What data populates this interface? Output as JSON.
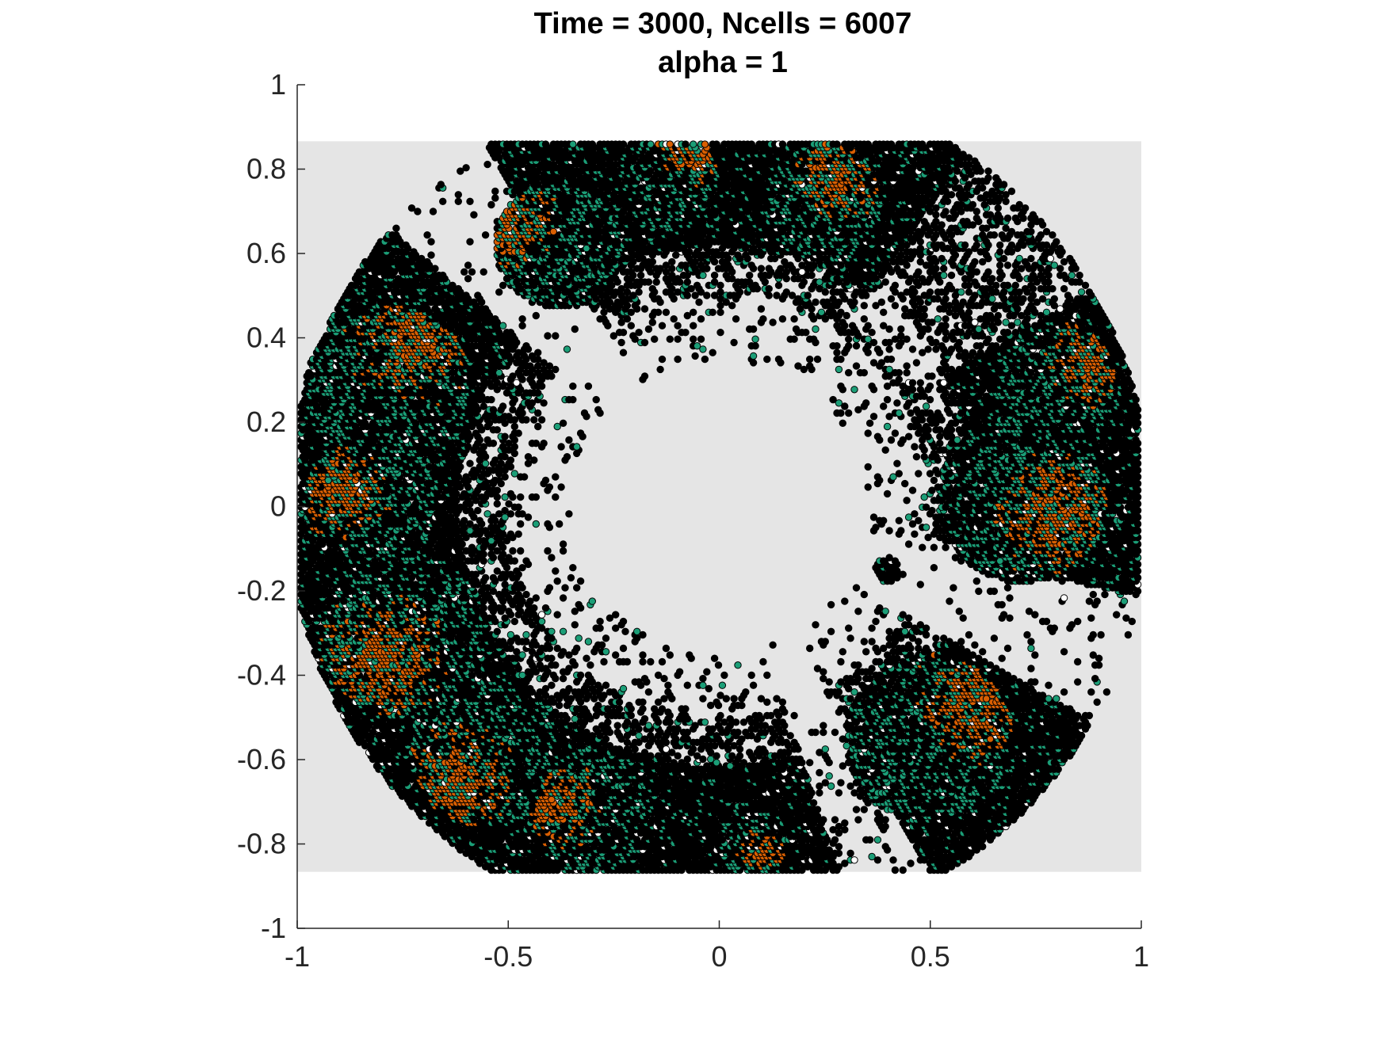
{
  "chart_data": {
    "type": "scatter",
    "title": "Time = 3000, Ncells = 6007",
    "subtitle": "alpha = 1",
    "xlabel": "",
    "ylabel": "",
    "xlim": [
      -1,
      1
    ],
    "ylim": [
      -1,
      1
    ],
    "xticks": [
      "-1",
      "-0.5",
      "0",
      "0.5",
      "1"
    ],
    "yticks": [
      "1",
      "0.8",
      "0.6",
      "0.4",
      "0.2",
      "0",
      "-0.2",
      "-0.4",
      "-0.6",
      "-0.8",
      "-1"
    ],
    "grid": false,
    "domain_region": {
      "x": [
        -1,
        1
      ],
      "y": [
        -0.866,
        0.866
      ],
      "color": "#e5e5e5"
    },
    "cell_count": 6007,
    "cell_types": [
      {
        "color": "#000000"
      },
      {
        "color": "#1b9e77"
      },
      {
        "color": "#d95f02"
      },
      {
        "color": "#ffffff"
      }
    ],
    "clusters": [
      {
        "center": [
          -0.78,
          0.28
        ],
        "radius": 0.2,
        "orange_center": [
          -0.72,
          0.4
        ]
      },
      {
        "center": [
          -0.82,
          0.02
        ],
        "radius": 0.16,
        "orange_center": [
          -0.9,
          0.05
        ]
      },
      {
        "center": [
          -0.75,
          -0.3
        ],
        "radius": 0.2,
        "orange_center": [
          -0.8,
          -0.35
        ]
      },
      {
        "center": [
          -0.55,
          -0.58
        ],
        "radius": 0.18,
        "orange_center": [
          -0.62,
          -0.65
        ]
      },
      {
        "center": [
          -0.3,
          -0.72
        ],
        "radius": 0.15,
        "orange_center": [
          -0.4,
          -0.7
        ]
      },
      {
        "center": [
          -0.38,
          0.62
        ],
        "radius": 0.15,
        "orange_center": [
          -0.5,
          0.68
        ]
      },
      {
        "center": [
          -0.12,
          0.78
        ],
        "radius": 0.12,
        "orange_center": [
          -0.05,
          0.85
        ]
      },
      {
        "center": [
          0.25,
          0.72
        ],
        "radius": 0.14,
        "orange_center": [
          0.28,
          0.78
        ]
      },
      {
        "center": [
          0.8,
          0.3
        ],
        "radius": 0.14,
        "orange_center": [
          0.88,
          0.35
        ]
      },
      {
        "center": [
          0.72,
          0.02
        ],
        "radius": 0.2,
        "orange_center": [
          0.8,
          -0.02
        ]
      },
      {
        "center": [
          0.5,
          -0.55
        ],
        "radius": 0.2,
        "orange_center": [
          0.62,
          -0.45
        ]
      },
      {
        "center": [
          0.08,
          -0.8
        ],
        "radius": 0.08,
        "orange_center": [
          0.1,
          -0.82
        ]
      }
    ]
  }
}
